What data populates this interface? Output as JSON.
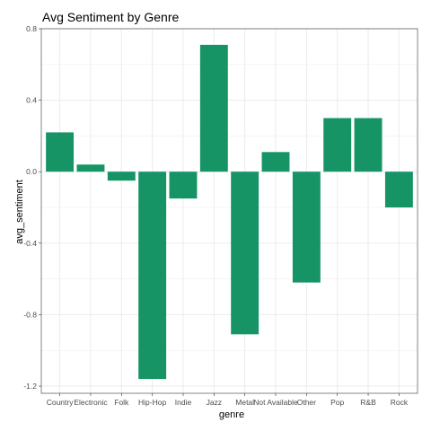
{
  "chart_data": {
    "type": "bar",
    "title": "Avg Sentiment by Genre",
    "xlabel": "genre",
    "ylabel": "avg_sentiment",
    "categories": [
      "Country",
      "Electronic",
      "Folk",
      "Hip-Hop",
      "Indie",
      "Jazz",
      "Metal",
      "Not Available",
      "Other",
      "Pop",
      "R&B",
      "Rock"
    ],
    "values": [
      0.22,
      0.04,
      -0.05,
      -1.16,
      -0.15,
      0.71,
      -0.91,
      0.11,
      -0.62,
      0.3,
      0.3,
      -0.2
    ],
    "ylim": [
      -1.24,
      0.8
    ],
    "yticks": [
      -1.2,
      -0.8,
      -0.4,
      0.0,
      0.4,
      0.8
    ],
    "ytick_labels": [
      "-1.2",
      "-0.8",
      "-0.4",
      "0.0",
      "0.4",
      "0.8"
    ],
    "grid": true,
    "legend": "none",
    "bar_color": "#169466",
    "grid_color": "#ebebeb",
    "panel_border_color": "#333333"
  }
}
